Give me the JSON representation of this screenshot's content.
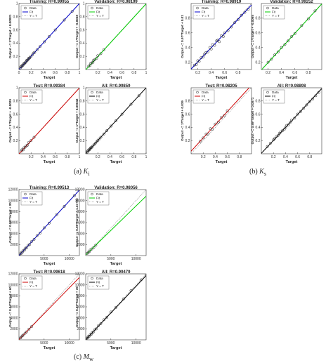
{
  "figure": {
    "captions": [
      {
        "prefix": "(a) ",
        "symbol": "K",
        "subscript": "i"
      },
      {
        "prefix": "(b) ",
        "symbol": "K",
        "subscript": "s"
      },
      {
        "prefix": "(c) ",
        "symbol": "M",
        "subscript": "w"
      }
    ]
  },
  "chart_data": [
    {
      "type": "scatter",
      "group": 0,
      "title": "Training: R=0.99955",
      "xlabel": "Target",
      "ylabel": "Output ~= 1*Target + 0.00021",
      "xlim": [
        0,
        1
      ],
      "ylim": [
        0,
        1
      ],
      "xticks": [
        0,
        0.2,
        0.4,
        0.6,
        0.8,
        1
      ],
      "yticks": [
        0.2,
        0.4,
        0.6,
        0.8,
        1
      ],
      "legend": [
        "Data",
        "Fit",
        "Y = T"
      ],
      "fit_color": "#0000cc",
      "fit": [
        1,
        0.00021
      ],
      "x": [
        0.02,
        0.03,
        0.04,
        0.05,
        0.06,
        0.07,
        0.08,
        0.09,
        0.1,
        0.11,
        0.12,
        0.13,
        0.14,
        0.15,
        0.16,
        0.17,
        0.18,
        0.2,
        0.22,
        0.24,
        0.26,
        0.3,
        0.35,
        0.42,
        0.5,
        0.6,
        0.75,
        0.88
      ],
      "y": [
        0.02,
        0.04,
        0.04,
        0.06,
        0.06,
        0.07,
        0.09,
        0.09,
        0.1,
        0.11,
        0.12,
        0.14,
        0.14,
        0.15,
        0.17,
        0.17,
        0.18,
        0.2,
        0.22,
        0.25,
        0.26,
        0.3,
        0.35,
        0.42,
        0.5,
        0.6,
        0.75,
        0.88
      ]
    },
    {
      "type": "scatter",
      "group": 0,
      "title": "Validation: R=0.98199",
      "xlabel": "Target",
      "ylabel": "Output ~= 1*Target + -0.0048",
      "xlim": [
        0,
        1
      ],
      "ylim": [
        0,
        1
      ],
      "xticks": [
        0.2,
        0.4,
        0.6,
        0.8,
        1
      ],
      "yticks": [
        0.2,
        0.4,
        0.6,
        0.8,
        1
      ],
      "legend": [
        "Data",
        "Fit",
        "Y = T"
      ],
      "fit_color": "#00cc00",
      "fit": [
        1,
        -0.0048
      ],
      "x": [
        0.05,
        0.07,
        0.08,
        0.1,
        0.12,
        0.13,
        0.15,
        0.18,
        0.2,
        0.25,
        0.3
      ],
      "y": [
        0.05,
        0.06,
        0.09,
        0.1,
        0.11,
        0.14,
        0.15,
        0.17,
        0.21,
        0.24,
        0.3
      ]
    },
    {
      "type": "scatter",
      "group": 0,
      "title": "Test: R=0.99384",
      "xlabel": "Target",
      "ylabel": "Output ~= 1*Target + -0.0029",
      "xlim": [
        0,
        1
      ],
      "ylim": [
        0,
        1
      ],
      "xticks": [
        0.2,
        0.4,
        0.6,
        0.8,
        1
      ],
      "yticks": [
        0.2,
        0.4,
        0.6,
        0.8,
        1
      ],
      "legend": [
        "Data",
        "Fit",
        "Y = T"
      ],
      "fit_color": "#cc0000",
      "fit": [
        1,
        -0.0029
      ],
      "x": [
        0.04,
        0.05,
        0.07,
        0.08,
        0.1,
        0.12,
        0.14,
        0.16,
        0.2,
        0.25
      ],
      "y": [
        0.04,
        0.06,
        0.06,
        0.09,
        0.1,
        0.12,
        0.13,
        0.17,
        0.2,
        0.25
      ]
    },
    {
      "type": "scatter",
      "group": 0,
      "title": "All: R=0.99859",
      "xlabel": "Target",
      "ylabel": "Output ~= 1*Target + 0.00042",
      "xlim": [
        0,
        1
      ],
      "ylim": [
        0,
        1
      ],
      "xticks": [
        0.2,
        0.4,
        0.6,
        0.8,
        1
      ],
      "yticks": [
        0.2,
        0.4,
        0.6,
        0.8,
        1
      ],
      "legend": [
        "Data",
        "Fit",
        "Y = T"
      ],
      "fit_color": "#000000",
      "fit": [
        1,
        0.00042
      ],
      "x": [
        0.02,
        0.03,
        0.04,
        0.05,
        0.06,
        0.07,
        0.08,
        0.09,
        0.1,
        0.12,
        0.14,
        0.16,
        0.18,
        0.2,
        0.22,
        0.25,
        0.3,
        0.35,
        0.42,
        0.5,
        0.6,
        0.75,
        0.88
      ],
      "y": [
        0.02,
        0.04,
        0.04,
        0.06,
        0.06,
        0.07,
        0.09,
        0.09,
        0.1,
        0.12,
        0.14,
        0.16,
        0.18,
        0.2,
        0.22,
        0.25,
        0.3,
        0.35,
        0.42,
        0.5,
        0.6,
        0.75,
        0.88
      ]
    },
    {
      "type": "scatter",
      "group": 1,
      "title": "Training: R=0.98919",
      "xlabel": "Target",
      "ylabel": "Output ~= 0.97*Target + 0.01",
      "xlim": [
        0.1,
        1
      ],
      "ylim": [
        0.1,
        1
      ],
      "xticks": [
        0.2,
        0.4,
        0.6,
        0.8
      ],
      "yticks": [
        0.2,
        0.4,
        0.6,
        0.8
      ],
      "legend": [
        "Data",
        "Fit",
        "Y = T"
      ],
      "fit_color": "#0000cc",
      "fit": [
        0.97,
        0.01
      ],
      "x": [
        0.15,
        0.18,
        0.2,
        0.22,
        0.25,
        0.28,
        0.3,
        0.32,
        0.35,
        0.38,
        0.4,
        0.42,
        0.45,
        0.48,
        0.5,
        0.52,
        0.55,
        0.58,
        0.6,
        0.65,
        0.7,
        0.75,
        0.8,
        0.85,
        0.9,
        0.95
      ],
      "y": [
        0.16,
        0.17,
        0.22,
        0.21,
        0.26,
        0.27,
        0.31,
        0.33,
        0.34,
        0.4,
        0.38,
        0.44,
        0.43,
        0.49,
        0.5,
        0.48,
        0.56,
        0.55,
        0.6,
        0.63,
        0.68,
        0.74,
        0.78,
        0.84,
        0.88,
        0.92
      ]
    },
    {
      "type": "scatter",
      "group": 1,
      "title": "Validation: R=0.99252",
      "xlabel": "Target",
      "ylabel": "Output ~= 1*Target + -0.0065",
      "xlim": [
        0.1,
        1
      ],
      "ylim": [
        0.1,
        1
      ],
      "xticks": [
        0.2,
        0.4,
        0.6,
        0.8
      ],
      "yticks": [
        0.2,
        0.4,
        0.6,
        0.8
      ],
      "legend": [
        "Data",
        "Fit",
        "Y = T"
      ],
      "fit_color": "#00cc00",
      "fit": [
        1,
        -0.0065
      ],
      "x": [
        0.2,
        0.25,
        0.3,
        0.35,
        0.4,
        0.45,
        0.5,
        0.55,
        0.6,
        0.7,
        0.8,
        0.9
      ],
      "y": [
        0.2,
        0.24,
        0.3,
        0.34,
        0.4,
        0.44,
        0.49,
        0.55,
        0.59,
        0.7,
        0.79,
        0.9
      ]
    },
    {
      "type": "scatter",
      "group": 1,
      "title": "Test: R=0.98205",
      "xlabel": "Target",
      "ylabel": "Output ~= 1*Target + 0.039",
      "xlim": [
        0,
        1
      ],
      "ylim": [
        0,
        1
      ],
      "xticks": [
        0.2,
        0.4,
        0.6,
        0.8
      ],
      "yticks": [
        0.2,
        0.4,
        0.6,
        0.8
      ],
      "legend": [
        "Data",
        "Fit",
        "Y = T"
      ],
      "fit_color": "#cc0000",
      "fit": [
        1,
        0.039
      ],
      "x": [
        0.15,
        0.2,
        0.25,
        0.28,
        0.32,
        0.35,
        0.4,
        0.45,
        0.5,
        0.55,
        0.6
      ],
      "y": [
        0.19,
        0.24,
        0.3,
        0.3,
        0.38,
        0.37,
        0.45,
        0.48,
        0.55,
        0.58,
        0.65
      ]
    },
    {
      "type": "scatter",
      "group": 1,
      "title": "All: R=0.98898",
      "xlabel": "Target",
      "ylabel": "Output ~= 0.98*Target + 0.0071",
      "xlim": [
        0,
        1
      ],
      "ylim": [
        0,
        1
      ],
      "xticks": [
        0.2,
        0.4,
        0.6,
        0.8
      ],
      "yticks": [
        0.2,
        0.4,
        0.6,
        0.8
      ],
      "legend": [
        "Data",
        "Fit",
        "Y = T"
      ],
      "fit_color": "#000000",
      "fit": [
        0.98,
        0.0071
      ],
      "x": [
        0.1,
        0.15,
        0.2,
        0.22,
        0.25,
        0.28,
        0.3,
        0.32,
        0.35,
        0.38,
        0.4,
        0.42,
        0.45,
        0.48,
        0.5,
        0.55,
        0.6,
        0.65,
        0.7,
        0.75,
        0.8,
        0.85,
        0.9,
        0.95
      ],
      "y": [
        0.11,
        0.16,
        0.21,
        0.23,
        0.26,
        0.28,
        0.31,
        0.33,
        0.35,
        0.37,
        0.4,
        0.43,
        0.44,
        0.48,
        0.51,
        0.54,
        0.6,
        0.64,
        0.69,
        0.74,
        0.79,
        0.83,
        0.88,
        0.93
      ]
    },
    {
      "type": "scatter",
      "group": 2,
      "title": "Training: R=0.99513",
      "xlabel": "Target",
      "ylabel": "Output ~= 0.99*Target + 20",
      "xlim": [
        0,
        12000
      ],
      "ylim": [
        0,
        12000
      ],
      "xticks": [
        5000,
        10000
      ],
      "yticks": [
        2000,
        4000,
        6000,
        8000,
        10000,
        12000
      ],
      "legend": [
        "Data",
        "Fit",
        "Y = T"
      ],
      "fit_color": "#0000cc",
      "fit": [
        0.99,
        20
      ],
      "x": [
        200,
        400,
        500,
        700,
        900,
        1100,
        1300,
        1500,
        1800,
        2100,
        2500,
        3000,
        3600,
        4200,
        5000,
        6000,
        7500,
        9000,
        11000
      ],
      "y": [
        300,
        350,
        600,
        650,
        950,
        1000,
        1350,
        1400,
        1850,
        2000,
        2550,
        2950,
        3650,
        4100,
        5050,
        5900,
        7450,
        8950,
        10900
      ]
    },
    {
      "type": "scatter",
      "group": 2,
      "title": "Validation: R=0.98056",
      "xlabel": "Target",
      "ylabel": "Output ~= 0.89*Target + 1.3e+02",
      "xlim": [
        0,
        12000
      ],
      "ylim": [
        0,
        12000
      ],
      "xticks": [
        5000,
        10000
      ],
      "yticks": [
        2000,
        4000,
        6000,
        8000,
        10000,
        12000
      ],
      "legend": [
        "Data",
        "Fit",
        "Y = T"
      ],
      "fit_color": "#00cc00",
      "fit": [
        0.89,
        130
      ],
      "x": [
        300,
        500,
        700,
        900,
        1200,
        1600,
        2000
      ],
      "y": [
        400,
        600,
        700,
        1000,
        1200,
        1500,
        1900
      ]
    },
    {
      "type": "scatter",
      "group": 2,
      "title": "Test: R=0.99618",
      "xlabel": "Target",
      "ylabel": "Output ~= 0.94*Target + 60",
      "xlim": [
        0,
        12000
      ],
      "ylim": [
        0,
        12000
      ],
      "xticks": [
        5000,
        10000
      ],
      "yticks": [
        2000,
        4000,
        6000,
        8000,
        10000,
        12000
      ],
      "legend": [
        "Data",
        "Fit",
        "Y = T"
      ],
      "fit_color": "#cc0000",
      "fit": [
        0.94,
        60
      ],
      "x": [
        300,
        500,
        700,
        900,
        1200,
        1500,
        2000,
        2500
      ],
      "y": [
        350,
        550,
        750,
        900,
        1200,
        1450,
        1950,
        2400
      ]
    },
    {
      "type": "scatter",
      "group": 2,
      "title": "All: R=0.99479",
      "xlabel": "Target",
      "ylabel": "Output ~= 0.97*Target + 39",
      "xlim": [
        0,
        12000
      ],
      "ylim": [
        0,
        12000
      ],
      "xticks": [
        5000,
        10000
      ],
      "yticks": [
        2000,
        4000,
        6000,
        8000,
        10000,
        12000
      ],
      "legend": [
        "Data",
        "Fit",
        "Y = T"
      ],
      "fit_color": "#000000",
      "fit": [
        0.97,
        39
      ],
      "x": [
        200,
        400,
        500,
        700,
        900,
        1100,
        1300,
        1500,
        1800,
        2100,
        2500,
        3000,
        3600,
        4200,
        5000,
        6000,
        7500,
        9000,
        11000,
        12000
      ],
      "y": [
        300,
        350,
        600,
        650,
        950,
        1000,
        1350,
        1400,
        1850,
        2000,
        2550,
        2950,
        3650,
        4100,
        5050,
        5900,
        7450,
        8950,
        10900,
        11800
      ]
    }
  ]
}
